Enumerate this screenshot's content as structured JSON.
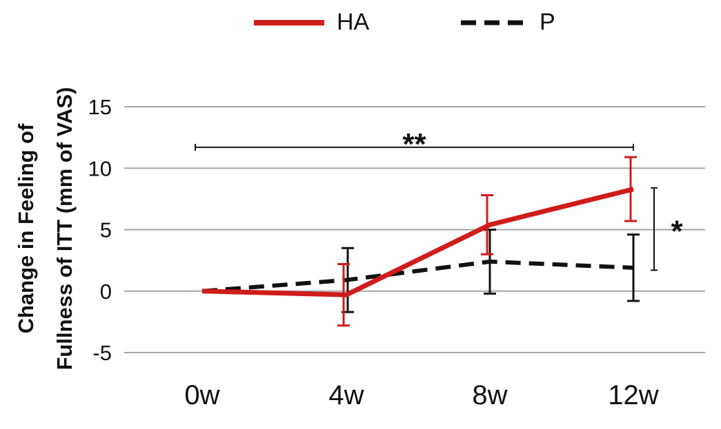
{
  "chart_data": {
    "type": "line",
    "categories": [
      "0w",
      "4w",
      "8w",
      "12w"
    ],
    "ylabel_line1": "Change in Feeling of",
    "ylabel_line2": "Fullness of ITT (mm of VAS)",
    "ylim": [
      -5,
      15
    ],
    "yticks": [
      -5,
      0,
      5,
      10,
      15
    ],
    "grid": true,
    "legend_position": "top",
    "series": [
      {
        "name": "HA",
        "color": "#d01c1c",
        "line_style": "solid",
        "values": [
          0,
          -0.3,
          5.4,
          8.3
        ],
        "error": [
          null,
          2.5,
          2.4,
          2.6
        ]
      },
      {
        "name": "P",
        "color": "#111111",
        "line_style": "dashed",
        "values": [
          0,
          0.9,
          2.4,
          1.9
        ],
        "error": [
          null,
          2.6,
          2.6,
          2.7
        ]
      }
    ],
    "annotations": [
      {
        "text": "**",
        "type": "bracket-horizontal",
        "from": "0w",
        "to": "12w",
        "y": 11.7
      },
      {
        "text": "*",
        "type": "bracket-vertical",
        "at": "12w",
        "from": 1.7,
        "to": 8.4
      }
    ]
  }
}
